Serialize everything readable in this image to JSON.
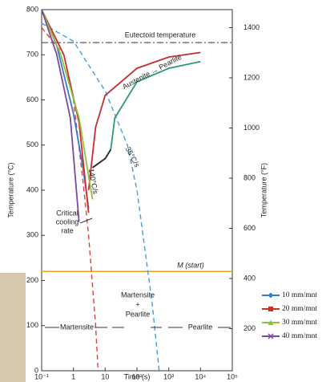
{
  "chart_data": {
    "type": "line",
    "xscale": "log",
    "xlabel": "Time (s)",
    "ylabel": "Temperature (°C)",
    "y2label": "Temperature (°F)",
    "xlim": [
      0.1,
      100000
    ],
    "ylim": [
      0,
      800
    ],
    "y2lim": [
      32,
      1472
    ],
    "xticks": [
      {
        "value": 0.1,
        "label": "10⁻¹"
      },
      1,
      10,
      {
        "value": 100,
        "label": "10²"
      },
      {
        "value": 1000,
        "label": "10³"
      },
      {
        "value": 10000,
        "label": "10⁴"
      },
      {
        "value": 100000,
        "label": "10⁵"
      }
    ],
    "yticks": [
      0,
      100,
      200,
      300,
      400,
      500,
      600,
      700,
      800
    ],
    "y2ticks": [
      200,
      400,
      600,
      800,
      1000,
      1200,
      1400
    ],
    "hlines": [
      {
        "value": 727,
        "label": "Eutectoid temperature",
        "color": "#777"
      },
      {
        "value": 220,
        "label": "M (start)",
        "color": "#e8a020"
      }
    ],
    "series": [
      {
        "name": "10 mm/mnt",
        "color": "#3a78c8",
        "marker": "diamond",
        "x": [
          0.1,
          0.3,
          1,
          2,
          3
        ],
        "values": [
          800,
          720,
          570,
          450,
          360
        ]
      },
      {
        "name": "20 mm/mnt",
        "color": "#c8302a",
        "marker": "square",
        "x": [
          0.1,
          0.5,
          1.5,
          3
        ],
        "values": [
          800,
          700,
          550,
          350
        ]
      },
      {
        "name": "30 mm/mnt",
        "color": "#8cc040",
        "marker": "triangle",
        "x": [
          0.1,
          0.4,
          1.5,
          4
        ],
        "values": [
          800,
          700,
          560,
          380
        ]
      },
      {
        "name": "40 mm/mnt",
        "color": "#7a4aa0",
        "marker": "cross",
        "x": [
          0.1,
          0.3,
          0.8,
          1.5
        ],
        "values": [
          800,
          700,
          560,
          330
        ]
      }
    ],
    "curves": [
      {
        "label": "140°C/s",
        "color": "#e04040",
        "dash": true,
        "x": [
          0.1,
          0.5,
          1,
          2,
          3,
          5,
          6
        ],
        "values": [
          760,
          700,
          600,
          420,
          300,
          100,
          0
        ]
      },
      {
        "label": "35°C/s",
        "color": "#40a0e0",
        "dash": true,
        "x": [
          0.1,
          1,
          10,
          50,
          100,
          300,
          500
        ],
        "values": [
          770,
          730,
          620,
          500,
          400,
          150,
          0
        ]
      },
      {
        "color": "#c03030",
        "dash": false,
        "x": [
          3,
          5,
          10,
          100,
          1000,
          10000
        ],
        "values": [
          400,
          540,
          610,
          670,
          695,
          705
        ]
      },
      {
        "color": "#2a9a70",
        "dash": false,
        "x": [
          15,
          20,
          100,
          1000,
          10000
        ],
        "values": [
          490,
          560,
          640,
          670,
          685
        ]
      },
      {
        "color": "#222",
        "dash": false,
        "x": [
          4,
          10,
          15
        ],
        "values": [
          450,
          470,
          490
        ]
      }
    ],
    "annotations": {
      "critical": [
        "Critical",
        "cooling",
        "rate"
      ],
      "reaction": "Austenite → Pearlite",
      "martensite": "Martensite",
      "mixed": [
        "Martensite",
        "+",
        "Pearlite"
      ],
      "pearlite": "Pearlite"
    }
  }
}
